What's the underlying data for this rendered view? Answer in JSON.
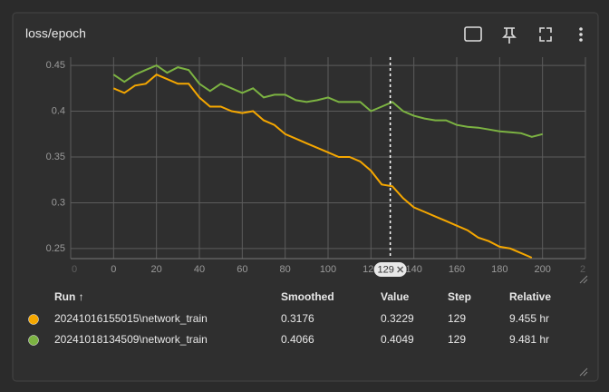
{
  "card": {
    "title": "loss/epoch"
  },
  "chart_data": {
    "type": "line",
    "x": [
      0,
      5,
      10,
      15,
      20,
      25,
      30,
      35,
      40,
      45,
      50,
      55,
      60,
      65,
      70,
      75,
      80,
      85,
      90,
      95,
      100,
      105,
      110,
      115,
      120,
      125,
      130,
      135,
      140,
      145,
      150,
      155,
      160,
      165,
      170,
      175,
      180,
      185,
      190,
      195,
      200
    ],
    "series": [
      {
        "name": "20241016155015\\network_train",
        "color": "#f5a700",
        "values": [
          0.425,
          0.42,
          0.428,
          0.43,
          0.44,
          0.435,
          0.43,
          0.43,
          0.415,
          0.405,
          0.405,
          0.4,
          0.398,
          0.4,
          0.39,
          0.385,
          0.375,
          0.37,
          0.365,
          0.36,
          0.355,
          0.35,
          0.35,
          0.345,
          0.335,
          0.32,
          0.318,
          0.305,
          0.295,
          0.29,
          0.285,
          0.28,
          0.275,
          0.27,
          0.262,
          0.258,
          0.252,
          0.25,
          0.245,
          0.24,
          null
        ]
      },
      {
        "name": "20241018134509\\network_train",
        "color": "#7cb342",
        "values": [
          0.44,
          0.432,
          0.44,
          0.445,
          0.45,
          0.442,
          0.448,
          0.445,
          0.43,
          0.422,
          0.43,
          0.425,
          0.42,
          0.425,
          0.415,
          0.418,
          0.418,
          0.412,
          0.41,
          0.412,
          0.415,
          0.41,
          0.41,
          0.41,
          0.4,
          0.405,
          0.41,
          0.4,
          0.395,
          0.392,
          0.39,
          0.39,
          0.385,
          0.383,
          0.382,
          0.38,
          0.378,
          0.377,
          0.376,
          0.372,
          0.375
        ]
      }
    ],
    "xlim": [
      -20,
      220
    ],
    "xticks": [
      {
        "value": -20,
        "label": "0"
      },
      0,
      20,
      40,
      60,
      80,
      100,
      120,
      140,
      160,
      180,
      200,
      {
        "value": 220,
        "label": "2"
      }
    ],
    "ylim": [
      0.239,
      0.459
    ],
    "yticks": [
      0.25,
      0.3,
      0.35,
      0.4,
      0.45
    ],
    "grid": true,
    "hover_x": 129
  },
  "table": {
    "columns": [
      "Run ↑",
      "Smoothed",
      "Value",
      "Step",
      "Relative"
    ],
    "rows": [
      [
        0.3176,
        0.3229,
        129,
        "9.455 hr"
      ],
      [
        0.4066,
        0.4049,
        129,
        "9.481 hr"
      ]
    ]
  }
}
